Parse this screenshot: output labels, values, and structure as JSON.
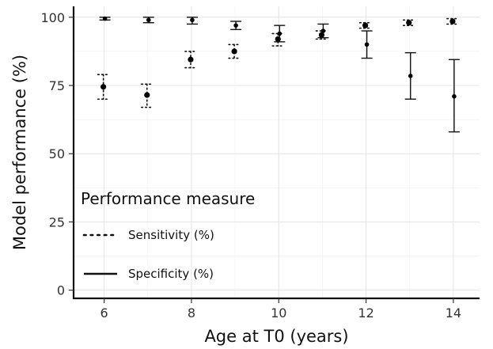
{
  "chart_data": {
    "type": "scatter",
    "title": "",
    "xlabel": "Age at T0 (years)",
    "ylabel": "Model performance (%)",
    "xlim": [
      5.3,
      14.6
    ],
    "ylim": [
      -3,
      104
    ],
    "x_ticks": [
      6,
      8,
      10,
      12,
      14
    ],
    "y_ticks": [
      0,
      25,
      50,
      75,
      100
    ],
    "grid": true,
    "legend": {
      "title": "Performance measure",
      "placement": "bottom-left",
      "entries": [
        {
          "label": "Sensitivity (%)",
          "line_style": "dotted"
        },
        {
          "label": "Specificity (%)",
          "line_style": "solid"
        }
      ]
    },
    "series": [
      {
        "name": "Sensitivity (%)",
        "line_style": "dotted",
        "x": [
          6,
          7,
          8,
          9,
          10,
          11,
          12,
          13,
          14
        ],
        "y": [
          74.5,
          71.5,
          84.5,
          87.5,
          92.0,
          93.5,
          97.0,
          98.0,
          98.5
        ],
        "lower": [
          70.0,
          67.0,
          81.5,
          85.0,
          89.5,
          92.0,
          96.0,
          97.0,
          97.5
        ],
        "upper": [
          79.0,
          75.5,
          87.5,
          90.0,
          94.0,
          95.0,
          98.0,
          99.0,
          99.5
        ]
      },
      {
        "name": "Specificity (%)",
        "line_style": "solid",
        "x": [
          6,
          7,
          8,
          9,
          10,
          11,
          12,
          13,
          14
        ],
        "y": [
          99.5,
          99.0,
          99.0,
          97.0,
          94.0,
          95.0,
          90.0,
          78.5,
          71.0
        ],
        "lower": [
          99.0,
          98.0,
          97.5,
          95.5,
          91.0,
          92.5,
          85.0,
          70.0,
          58.0
        ],
        "upper": [
          100.0,
          100.0,
          100.0,
          98.5,
          97.0,
          97.5,
          95.0,
          87.0,
          84.5
        ]
      }
    ]
  }
}
